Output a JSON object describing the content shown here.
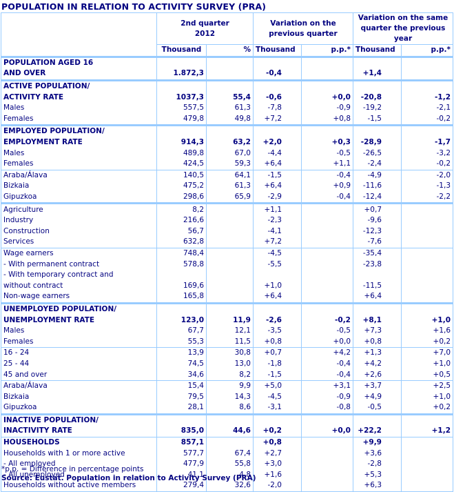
{
  "title": "POPULATION IN RELATION TO ACTIVITY SURVEY (PRA)",
  "colors": {
    "text": "#000080",
    "border": "#99ccff",
    "background": "#ffffff"
  },
  "header": {
    "groups": [
      "2nd quarter 2012",
      "Variation on the previous quarter",
      "Variation on the same quarter the previous year"
    ],
    "group_lines": [
      [
        "2nd quarter",
        "2012"
      ],
      [
        "Variation on the",
        "previous quarter"
      ],
      [
        "Variation on the same",
        "quarter the previous",
        "year"
      ]
    ],
    "sub": [
      "Thousand",
      "%",
      "Thousand",
      "p.p.*",
      "Thousand",
      "p.p.*"
    ]
  },
  "rows": [
    {
      "label": [
        "POPULATION AGED 16",
        "AND OVER"
      ],
      "values": [
        "1.872,3",
        "",
        "-0,4",
        "",
        "+1,4",
        ""
      ],
      "bold": true,
      "section": true
    },
    {
      "label": [
        "ACTIVE POPULATION/",
        "ACTIVITY RATE"
      ],
      "values": [
        "1037,3",
        "55,4",
        "-0,6",
        "+0,0",
        "-20,8",
        "-1,2"
      ],
      "bold": true,
      "section": true
    },
    {
      "label": "Males",
      "values": [
        "557,5",
        "61,3",
        "-7,8",
        "-0,9",
        "-19,2",
        "-2,1"
      ]
    },
    {
      "label": "Females",
      "values": [
        "479,8",
        "49,8",
        "+7,2",
        "+0,8",
        "-1,5",
        "-0,2"
      ]
    },
    {
      "label": [
        "EMPLOYED POPULATION/",
        "EMPLOYMENT RATE"
      ],
      "values": [
        "914,3",
        "63,2",
        "+2,0",
        "+0,3",
        "-28,9",
        "-1,7"
      ],
      "bold": true,
      "section": true
    },
    {
      "label": "Males",
      "values": [
        "489,8",
        "67,0",
        "-4,4",
        "-0,5",
        "-26,5",
        "-3,2"
      ]
    },
    {
      "label": "Females",
      "values": [
        "424,5",
        "59,3",
        "+6,4",
        "+1,1",
        "-2,4",
        "-0,2"
      ]
    },
    {
      "label": "Araba/Álava",
      "values": [
        "140,5",
        "64,1",
        "-1,5",
        "-0,4",
        "-4,9",
        "-2,0"
      ],
      "group": true
    },
    {
      "label": "Bizkaia",
      "values": [
        "475,2",
        "61,3",
        "+6,4",
        "+0,9",
        "-11,6",
        "-1,3"
      ]
    },
    {
      "label": "Gipuzkoa",
      "values": [
        "298,6",
        "65,9",
        "-2,9",
        "-0,4",
        "-12,4",
        "-2,2"
      ]
    },
    {
      "label": "Agriculture",
      "values": [
        "8,2",
        "",
        "+1,1",
        "",
        "+0,7",
        ""
      ],
      "section": true
    },
    {
      "label": "Industry",
      "values": [
        "216,6",
        "",
        "-2,3",
        "",
        "-9,6",
        ""
      ]
    },
    {
      "label": "Construction",
      "values": [
        "56,7",
        "",
        "-4,1",
        "",
        "-12,3",
        ""
      ]
    },
    {
      "label": "Services",
      "values": [
        "632,8",
        "",
        "+7,2",
        "",
        "-7,6",
        ""
      ]
    },
    {
      "label": "Wage earners",
      "values": [
        "748,4",
        "",
        "-4,5",
        "",
        "-35,4",
        ""
      ],
      "group": true
    },
    {
      "label": "- With permanent contract",
      "values": [
        "578,8",
        "",
        "-5,5",
        "",
        "-23,8",
        ""
      ]
    },
    {
      "label": [
        " - With temporary contract and",
        "without contract"
      ],
      "values": [
        "169,6",
        "",
        "+1,0",
        "",
        "-11,5",
        ""
      ]
    },
    {
      "label": "Non-wage earners",
      "values": [
        "165,8",
        "",
        "+6,4",
        "",
        "+6,4",
        ""
      ]
    },
    {
      "label": [
        "UNEMPLOYED POPULATION/",
        "UNEMPLOYMENT RATE"
      ],
      "values": [
        "123,0",
        "11,9",
        "-2,6",
        "-0,2",
        "+8,1",
        "+1,0"
      ],
      "bold": true,
      "section": true
    },
    {
      "label": "Males",
      "values": [
        "67,7",
        "12,1",
        "-3,5",
        "-0,5",
        "+7,3",
        "+1,6"
      ]
    },
    {
      "label": "Females",
      "values": [
        "55,3",
        "11,5",
        "+0,8",
        "+0,0",
        "+0,8",
        "+0,2"
      ]
    },
    {
      "label": "16 - 24",
      "values": [
        "13,9",
        "30,8",
        "+0,7",
        "+4,2",
        "+1,3",
        "+7,0"
      ],
      "group": true
    },
    {
      "label": "25 - 44",
      "values": [
        "74,5",
        "13,0",
        "-1,8",
        "-0,4",
        "+4,2",
        "+1,0"
      ]
    },
    {
      "label": "45 and over",
      "values": [
        "34,6",
        "8,2",
        "-1,5",
        "-0,4",
        "+2,6",
        "+0,5"
      ]
    },
    {
      "label": "Araba/Álava",
      "values": [
        "15,4",
        "9,9",
        "+5,0",
        "+3,1",
        "+3,7",
        "+2,5"
      ],
      "group": true
    },
    {
      "label": "Bizkaia",
      "values": [
        "79,5",
        "14,3",
        "-4,5",
        "-0,9",
        "+4,9",
        "+1,0"
      ]
    },
    {
      "label": "Gipuzkoa",
      "values": [
        "28,1",
        "8,6",
        "-3,1",
        "-0,8",
        "-0,5",
        "+0,2"
      ]
    },
    {
      "label": [
        "INACTIVE POPULATION/",
        "INACTIVITY RATE"
      ],
      "values": [
        "835,0",
        "44,6",
        "+0,2",
        "+0,0",
        "+22,2",
        "+1,2"
      ],
      "bold": true,
      "section": true
    },
    {
      "label": "HOUSEHOLDS",
      "values": [
        "857,1",
        "",
        "+0,8",
        "",
        "+9,9",
        ""
      ],
      "bold": true,
      "group": true
    },
    {
      "label": "Households with 1 or more active",
      "values": [
        "577,7",
        "67,4",
        "+2,7",
        "",
        "+3,6",
        ""
      ]
    },
    {
      "label": "- All employed",
      "values": [
        "477,9",
        "55,8",
        "+3,0",
        "",
        "-2,8",
        ""
      ]
    },
    {
      "label": "- All unemployed",
      "values": [
        "41,1",
        "4,8",
        "+1,6",
        "",
        "+5,3",
        ""
      ]
    },
    {
      "label": "Households without active members",
      "values": [
        "279,4",
        "32,6",
        "-2,0",
        "",
        "+6,3",
        ""
      ],
      "last": true
    }
  ],
  "footnote": "*p.p. = Difference in percentage points",
  "source": "Source: Eustat. Population in relation to Activity Survey (PRA)"
}
